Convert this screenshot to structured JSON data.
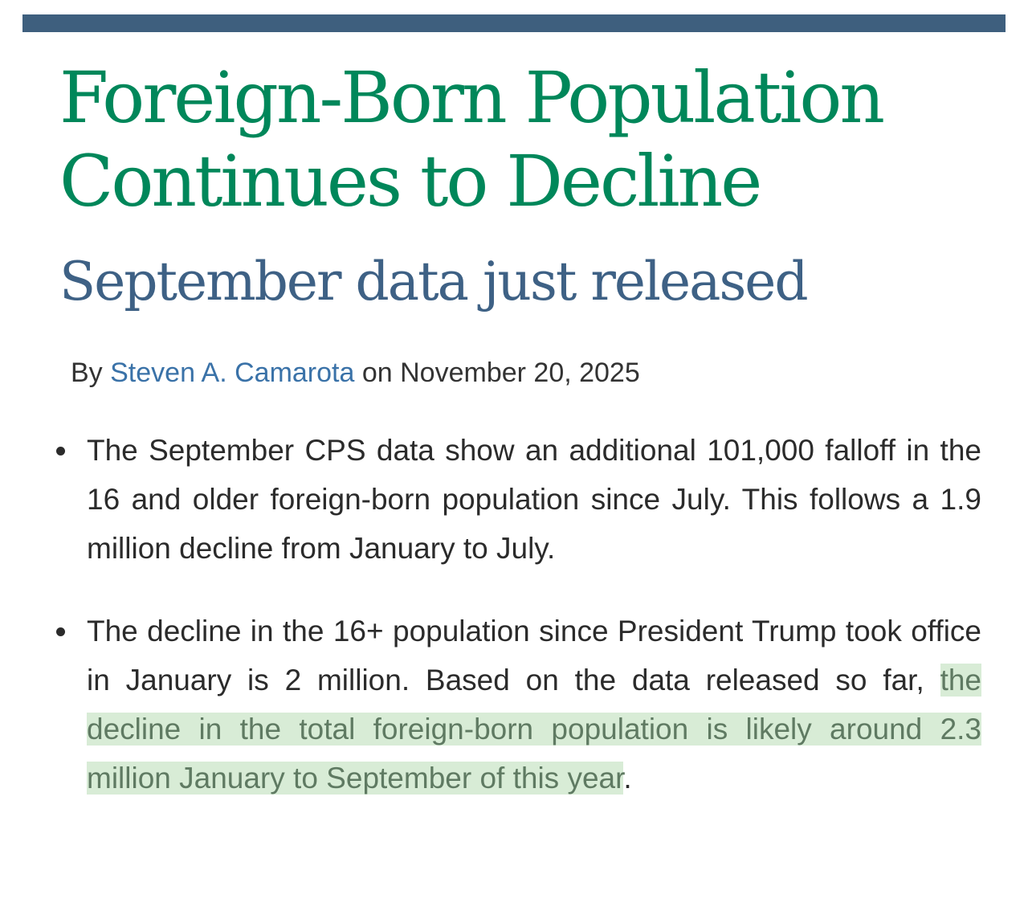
{
  "article": {
    "title": "Foreign-Born Population Continues to Decline",
    "subtitle": "September data just released",
    "byline": {
      "prefix": "By ",
      "author": "Steven A. Camarota",
      "middle": " on ",
      "date": "November 20, 2025"
    },
    "bullets": [
      {
        "text": "The September CPS data show an additional 101,000 falloff in the 16 and older foreign-born population since July. This follows a 1.9 million decline from January to July."
      },
      {
        "text_before": "The decline in the 16+ population since President Trump took office in January is 2 million. Based on the data released so far, ",
        "highlight": "the decline in the total foreign-born population is likely around 2.3 million January to September of this year",
        "text_after": "."
      }
    ]
  },
  "colors": {
    "top_bar": "#3e5f7e",
    "title": "#00875a",
    "subtitle": "#3e6185",
    "author_link": "#3a72a8",
    "highlight_bg": "#d8ecd6",
    "highlight_text": "#5f7a62"
  }
}
